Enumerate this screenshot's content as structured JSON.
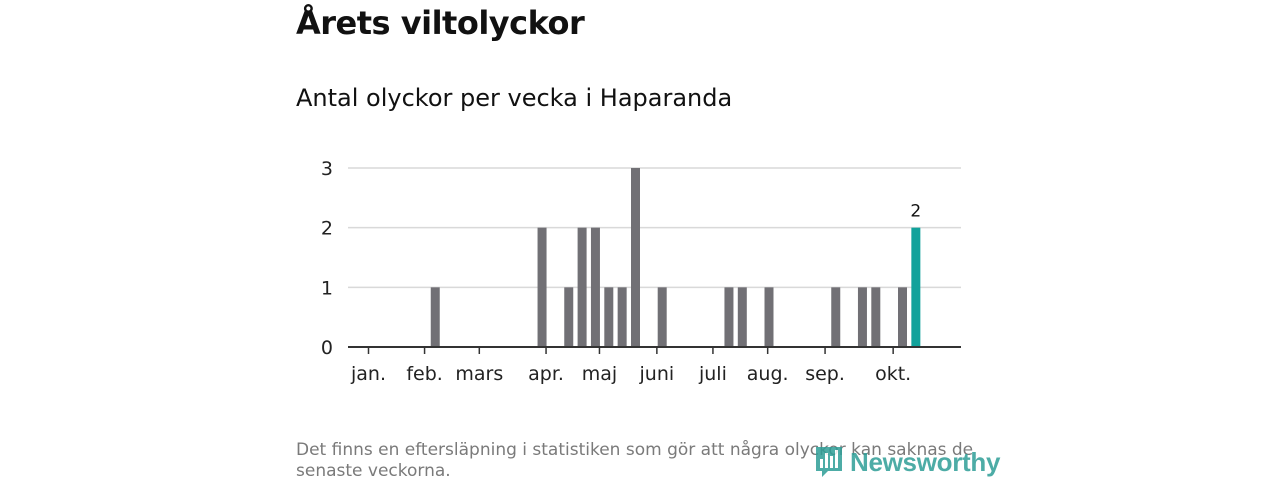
{
  "title": "Årets viltolyckor",
  "subtitle": "Antal olyckor per vecka i Haparanda",
  "footnote": "Det finns en eftersläpning i statistiken som gör att några olyckor kan saknas de senaste veckorna.",
  "logo": {
    "text": "Newsworthy",
    "icon": "bar-chart-logo-icon"
  },
  "colors": {
    "bar": "#717075",
    "highlight": "#11a29b",
    "grid": "#d9d9d9",
    "axis": "#333333"
  },
  "chart_data": {
    "type": "bar",
    "title": "",
    "xlabel": "",
    "ylabel": "",
    "ylim": [
      0,
      3
    ],
    "yticks": [
      0,
      1,
      2,
      3
    ],
    "grid": true,
    "weeks": [
      1,
      44
    ],
    "x_tick_labels": [
      {
        "label": "jan.",
        "week": 1
      },
      {
        "label": "feb.",
        "week": 5.2
      },
      {
        "label": "mars",
        "week": 9.3
      },
      {
        "label": "apr.",
        "week": 14.3
      },
      {
        "label": "maj",
        "week": 18.3
      },
      {
        "label": "juni",
        "week": 22.6
      },
      {
        "label": "juli",
        "week": 26.8
      },
      {
        "label": "aug.",
        "week": 30.9
      },
      {
        "label": "sep.",
        "week": 35.2
      },
      {
        "label": "okt.",
        "week": 40.3
      }
    ],
    "values": [
      {
        "week": 6,
        "value": 1
      },
      {
        "week": 14,
        "value": 2
      },
      {
        "week": 16,
        "value": 1
      },
      {
        "week": 17,
        "value": 2
      },
      {
        "week": 18,
        "value": 2
      },
      {
        "week": 19,
        "value": 1
      },
      {
        "week": 20,
        "value": 1
      },
      {
        "week": 21,
        "value": 3
      },
      {
        "week": 23,
        "value": 1
      },
      {
        "week": 28,
        "value": 1
      },
      {
        "week": 29,
        "value": 1
      },
      {
        "week": 31,
        "value": 1
      },
      {
        "week": 36,
        "value": 1
      },
      {
        "week": 38,
        "value": 1
      },
      {
        "week": 39,
        "value": 1
      },
      {
        "week": 41,
        "value": 1
      },
      {
        "week": 42,
        "value": 2,
        "highlight": true,
        "label": "2"
      }
    ]
  }
}
